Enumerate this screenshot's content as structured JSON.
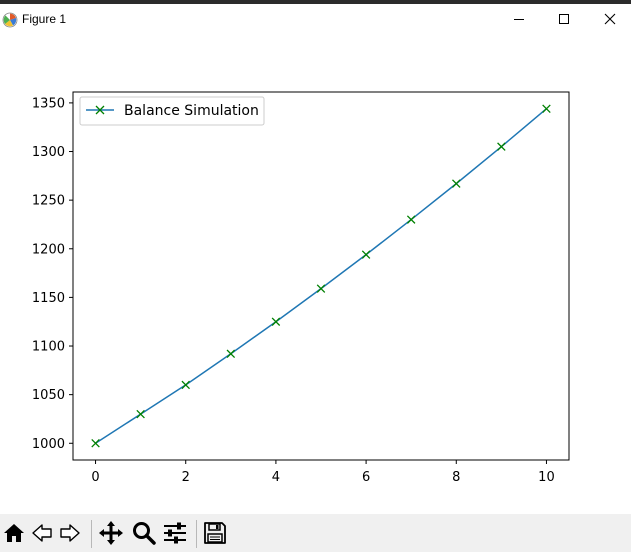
{
  "window": {
    "title": "Figure 1"
  },
  "icons": {
    "app": "matplotlib-figure-icon",
    "minimize": "minimize-icon",
    "maximize": "maximize-icon",
    "close": "close-icon",
    "home": "home-icon",
    "back": "back-arrow-icon",
    "forward": "forward-arrow-icon",
    "pan": "move-icon",
    "zoom": "magnifier-icon",
    "configure": "sliders-icon",
    "save": "save-icon"
  },
  "colors": {
    "line": "#1f77b4",
    "marker": "#008000"
  },
  "chart_data": {
    "type": "line",
    "x": [
      0,
      1,
      2,
      3,
      4,
      5,
      6,
      7,
      8,
      9,
      10
    ],
    "series": [
      {
        "name": "Balance Simulation",
        "values": [
          1000,
          1030,
          1060,
          1092,
          1125,
          1159,
          1194,
          1230,
          1267,
          1305,
          1344
        ]
      }
    ],
    "marker": "x",
    "xticks": [
      0,
      2,
      4,
      6,
      8,
      10
    ],
    "xtick_labels": [
      "0",
      "2",
      "4",
      "6",
      "8",
      "10"
    ],
    "yticks": [
      1000,
      1050,
      1100,
      1150,
      1200,
      1250,
      1300,
      1350
    ],
    "ytick_labels": [
      "1000",
      "1050",
      "1100",
      "1150",
      "1200",
      "1250",
      "1300",
      "1350"
    ],
    "xlim": [
      -0.5,
      10.5
    ],
    "ylim": [
      982.8,
      1361.2
    ],
    "legend": "top-left",
    "grid": false,
    "title": "",
    "xlabel": "",
    "ylabel": ""
  }
}
